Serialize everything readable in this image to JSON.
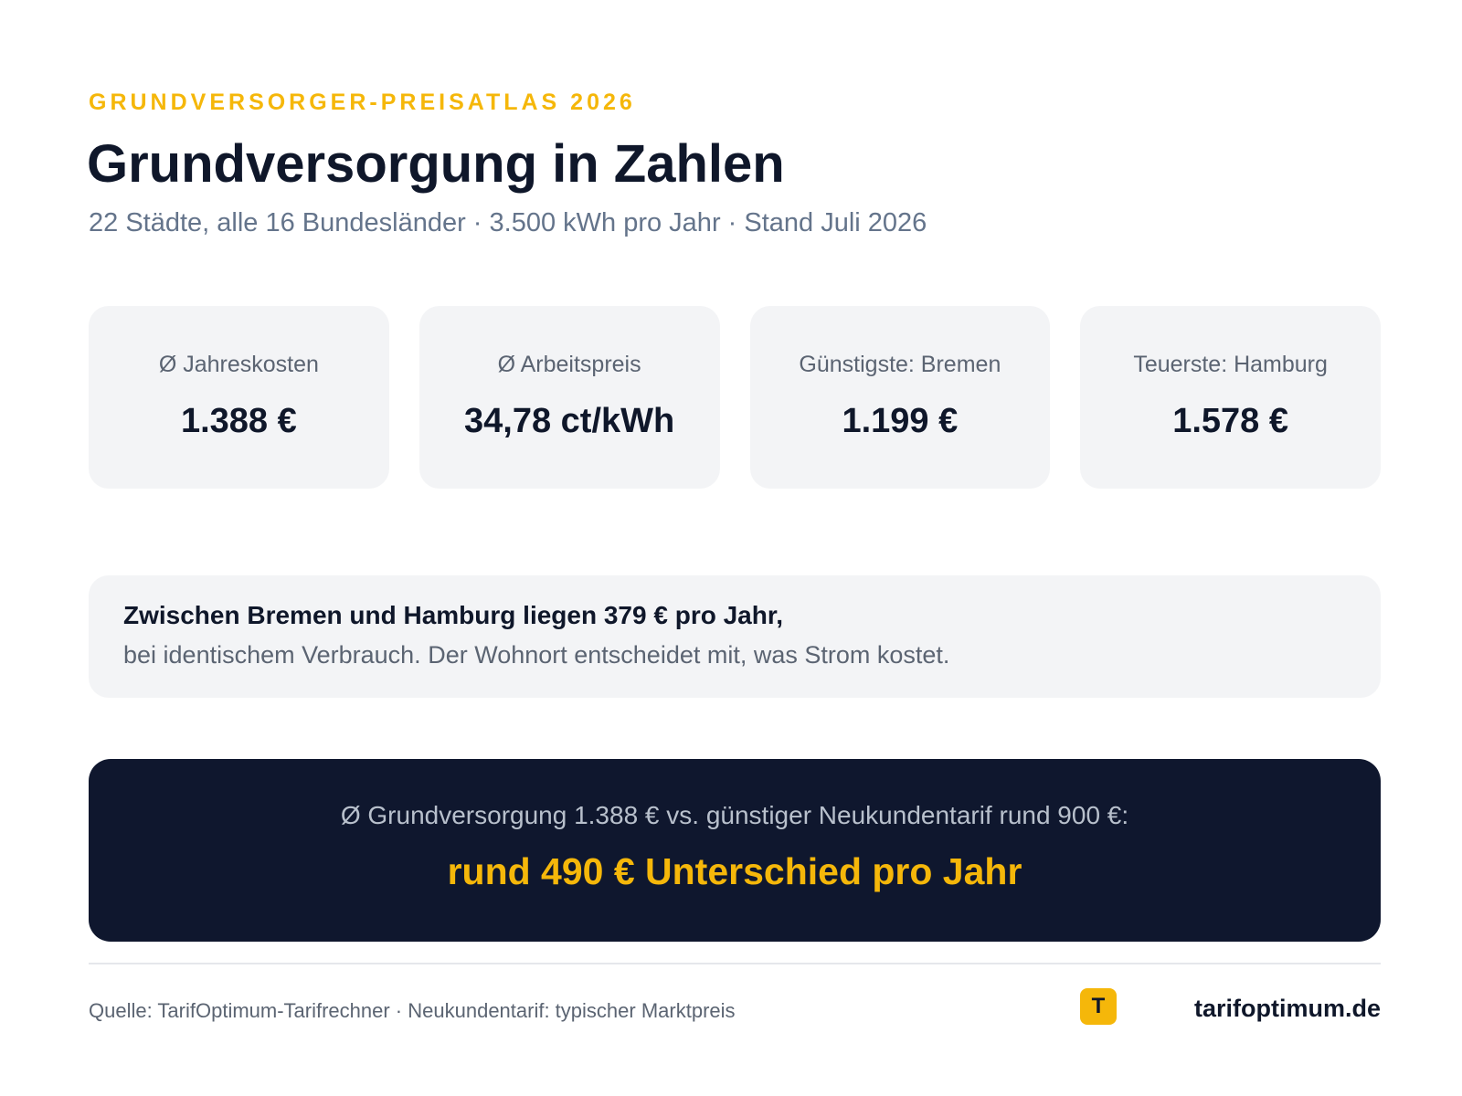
{
  "header": {
    "eyebrow": "GRUNDVERSORGER-PREISATLAS 2026",
    "title": "Grundversorgung in Zahlen",
    "subtitle": "22 Städte, alle 16 Bundesländer · 3.500 kWh pro Jahr · Stand Juli 2026"
  },
  "stats": [
    {
      "label": "Ø Jahreskosten",
      "value": "1.388 €"
    },
    {
      "label": "Ø Arbeitspreis",
      "value": "34,78 ct/kWh"
    },
    {
      "label": "Günstigste: Bremen",
      "value": "1.199 €"
    },
    {
      "label": "Teuerste: Hamburg",
      "value": "1.578 €"
    }
  ],
  "insight": {
    "headline": "Zwischen Bremen und Hamburg liegen 379 € pro Jahr,",
    "text": "bei identischem Verbrauch. Der Wohnort entscheidet mit, was Strom kostet."
  },
  "highlight": {
    "comparison": "Ø Grundversorgung 1.388 € vs. günstiger Neukundentarif rund 900 €:",
    "result": "rund 490 € Unterschied pro Jahr"
  },
  "footer": {
    "source": "Quelle: TarifOptimum-Tarifrechner · Neukundentarif: typischer Marktpreis",
    "brand_icon_letter": "T",
    "brand_name": "tarifoptimum.de"
  },
  "colors": {
    "accent": "#f5b70a",
    "dark": "#0f172e",
    "card_bg": "#f3f4f6"
  }
}
